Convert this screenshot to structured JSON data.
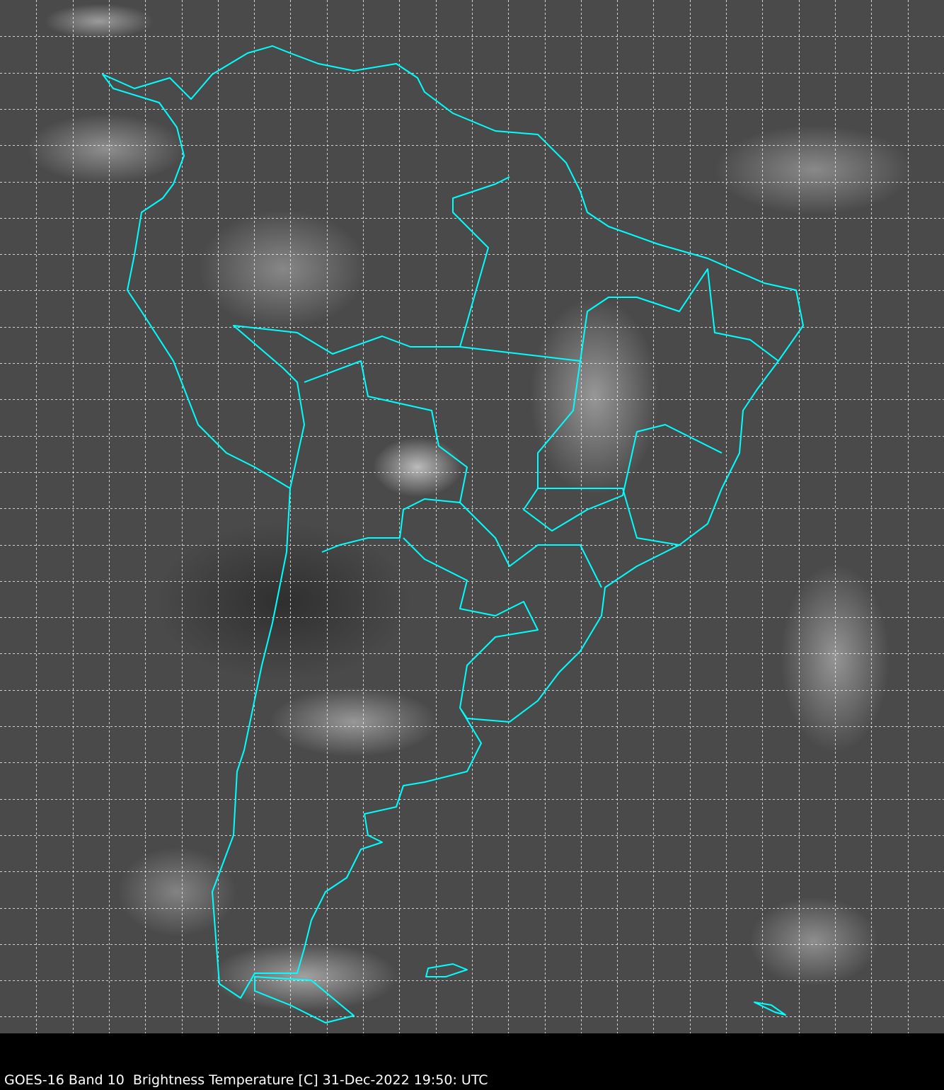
{
  "caption": "GOES-16 Band 10  Brightness Temperature [C] 31-Dec-2022 19:50: UTC",
  "colors": {
    "border": "#00ffff",
    "grid": "#ffffff",
    "background": "#000000"
  },
  "grid": {
    "lines": "dashed",
    "visible": true
  }
}
